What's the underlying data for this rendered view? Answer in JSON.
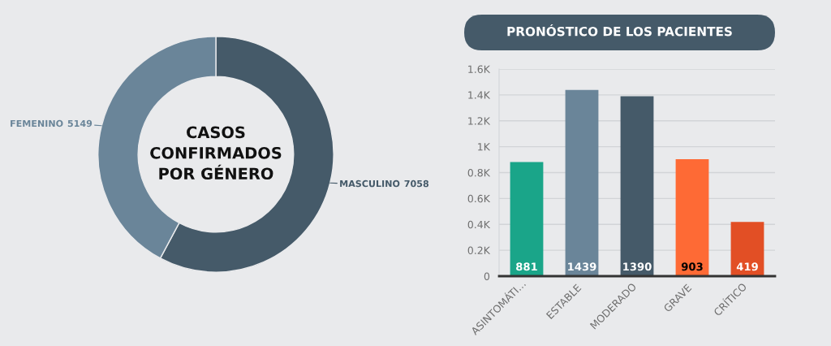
{
  "chart_data": [
    {
      "type": "donut",
      "title": "CASOS\nCONFIRMADOS\nPOR GÉNERO",
      "categories": [
        "MASCULINO",
        "FEMENINO"
      ],
      "values": [
        7058,
        5149
      ],
      "colors": [
        "#455a69",
        "#6a8599"
      ],
      "data_labels": true
    },
    {
      "type": "bar",
      "title": "PRONÓSTICO DE LOS PACIENTES",
      "categories": [
        "ASINTOMÁTI…",
        "ESTABLE",
        "MODERADO",
        "GRAVE",
        "CRÍTICO"
      ],
      "values": [
        881,
        1439,
        1390,
        903,
        419
      ],
      "colors": [
        "#1aa589",
        "#6a8599",
        "#455a69",
        "#fe6a35",
        "#e24f25"
      ],
      "ylim": [
        0,
        1600
      ],
      "yticks": [
        0,
        {
          "value": 200,
          "label": "0.2K"
        },
        {
          "value": 400,
          "label": "0.4K"
        },
        {
          "value": 600,
          "label": "0.6K"
        },
        {
          "value": 800,
          "label": "0.8K"
        },
        {
          "value": 1000,
          "label": "1K"
        },
        {
          "value": 1200,
          "label": "1.2K"
        },
        {
          "value": 1400,
          "label": "1.4K"
        },
        {
          "value": 1600,
          "label": "1.6K"
        }
      ],
      "grid": "y",
      "data_labels": true
    }
  ]
}
